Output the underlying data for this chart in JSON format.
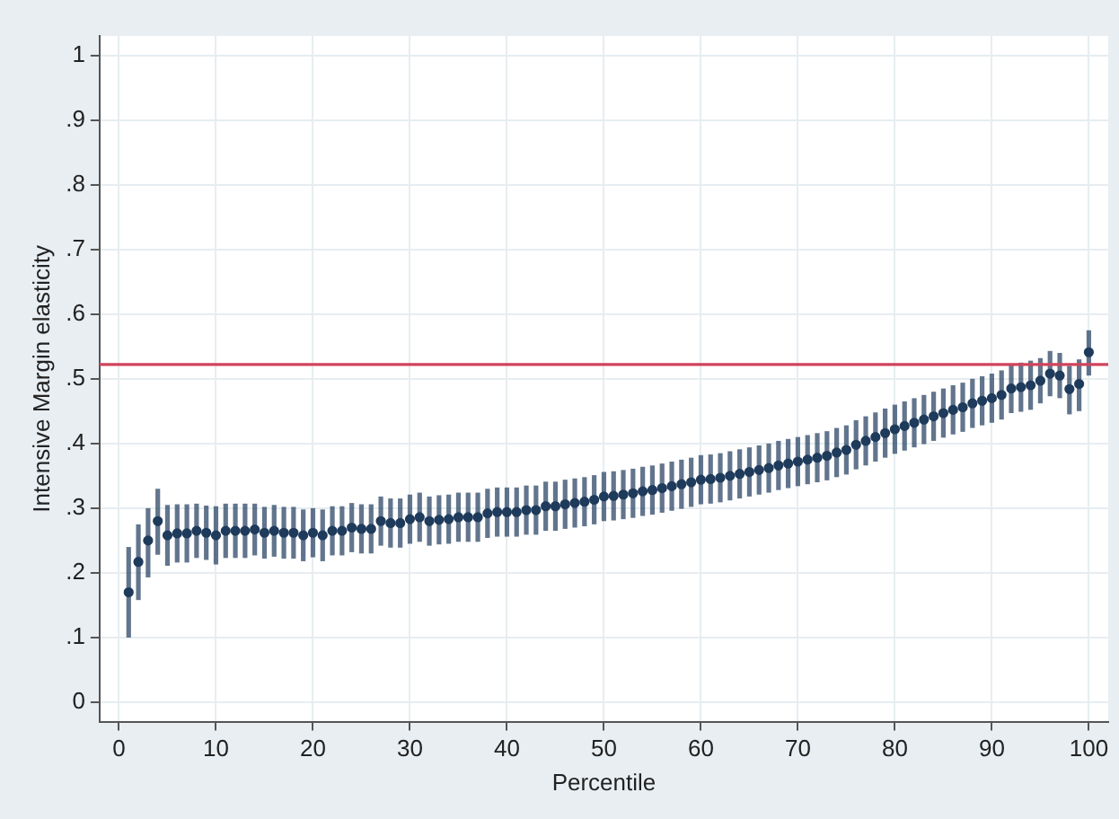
{
  "chart_data": {
    "type": "scatter",
    "xlabel": "Percentile",
    "ylabel": "Intensive Margin elasticity",
    "x": [
      1,
      2,
      3,
      4,
      5,
      6,
      7,
      8,
      9,
      10,
      11,
      12,
      13,
      14,
      15,
      16,
      17,
      18,
      19,
      20,
      21,
      22,
      23,
      24,
      25,
      26,
      27,
      28,
      29,
      30,
      31,
      32,
      33,
      34,
      35,
      36,
      37,
      38,
      39,
      40,
      41,
      42,
      43,
      44,
      45,
      46,
      47,
      48,
      49,
      50,
      51,
      52,
      53,
      54,
      55,
      56,
      57,
      58,
      59,
      60,
      61,
      62,
      63,
      64,
      65,
      66,
      67,
      68,
      69,
      70,
      71,
      72,
      73,
      74,
      75,
      76,
      77,
      78,
      79,
      80,
      81,
      82,
      83,
      84,
      85,
      86,
      87,
      88,
      89,
      90,
      91,
      92,
      93,
      94,
      95,
      96,
      97,
      98,
      99,
      100
    ],
    "series": [
      {
        "color": "#1f3b5c",
        "values": [
          0.17,
          0.217,
          0.25,
          0.28,
          0.258,
          0.261,
          0.261,
          0.265,
          0.262,
          0.258,
          0.265,
          0.265,
          0.265,
          0.267,
          0.262,
          0.265,
          0.262,
          0.262,
          0.258,
          0.262,
          0.258,
          0.265,
          0.265,
          0.27,
          0.268,
          0.268,
          0.28,
          0.277,
          0.277,
          0.283,
          0.286,
          0.28,
          0.282,
          0.283,
          0.286,
          0.286,
          0.286,
          0.292,
          0.294,
          0.294,
          0.294,
          0.297,
          0.297,
          0.303,
          0.303,
          0.306,
          0.308,
          0.31,
          0.313,
          0.318,
          0.319,
          0.321,
          0.323,
          0.326,
          0.328,
          0.331,
          0.334,
          0.337,
          0.34,
          0.344,
          0.345,
          0.347,
          0.35,
          0.353,
          0.356,
          0.359,
          0.362,
          0.366,
          0.369,
          0.372,
          0.375,
          0.378,
          0.381,
          0.386,
          0.39,
          0.398,
          0.404,
          0.41,
          0.416,
          0.422,
          0.427,
          0.432,
          0.437,
          0.442,
          0.447,
          0.452,
          0.456,
          0.462,
          0.466,
          0.47,
          0.475,
          0.485,
          0.487,
          0.49,
          0.497,
          0.508,
          0.505,
          0.484,
          0.492,
          0.541
        ],
        "errors": [
          [
            0.1,
            0.24
          ],
          [
            0.158,
            0.275
          ],
          [
            0.193,
            0.3
          ],
          [
            0.228,
            0.33
          ],
          0.047,
          0.045,
          0.045,
          0.042,
          0.042,
          0.045,
          0.042,
          0.042,
          0.042,
          0.04,
          0.04,
          0.04,
          0.04,
          0.04,
          0.04,
          0.038,
          0.04,
          0.038,
          0.038,
          0.038,
          0.038,
          0.038,
          0.038,
          0.038,
          0.038,
          0.038,
          0.038,
          0.038,
          0.038,
          0.038,
          0.038,
          0.038,
          0.038,
          0.038,
          0.038,
          0.038,
          0.038,
          0.038,
          0.038,
          0.038,
          0.038,
          0.038,
          0.038,
          0.038,
          0.038,
          0.038,
          0.038,
          0.038,
          0.038,
          0.038,
          0.038,
          0.038,
          0.038,
          0.038,
          0.038,
          0.038,
          0.038,
          0.038,
          0.038,
          0.038,
          0.038,
          0.038,
          0.038,
          0.038,
          0.038,
          0.038,
          0.038,
          0.038,
          0.038,
          0.038,
          0.038,
          0.038,
          0.038,
          0.038,
          0.038,
          0.038,
          0.038,
          0.038,
          0.038,
          0.038,
          0.038,
          0.038,
          0.038,
          0.038,
          0.038,
          0.038,
          0.038,
          0.038,
          0.038,
          0.038,
          0.035,
          0.035,
          0.035,
          [
            0.445,
            0.52
          ],
          [
            0.45,
            0.53
          ],
          [
            0.505,
            0.575
          ]
        ]
      }
    ],
    "xlim": [
      -2,
      102
    ],
    "xticks": [
      0,
      10,
      20,
      30,
      40,
      50,
      60,
      70,
      80,
      90,
      100
    ],
    "ylim": [
      -0.03,
      1.03
    ],
    "yticks": [
      0,
      {
        "value": 0.1,
        "label": ".1"
      },
      {
        "value": 0.2,
        "label": ".2"
      },
      {
        "value": 0.3,
        "label": ".3"
      },
      {
        "value": 0.4,
        "label": ".4"
      },
      {
        "value": 0.5,
        "label": ".5"
      },
      {
        "value": 0.6,
        "label": ".6"
      },
      {
        "value": 0.7,
        "label": ".7"
      },
      {
        "value": 0.8,
        "label": ".8"
      },
      {
        "value": 0.9,
        "label": ".9"
      },
      1
    ],
    "ref_lines": [
      {
        "axis": "y",
        "value": 0.522,
        "color": "#d0435b"
      }
    ],
    "grid": true,
    "legend": false,
    "marker": "circle"
  }
}
